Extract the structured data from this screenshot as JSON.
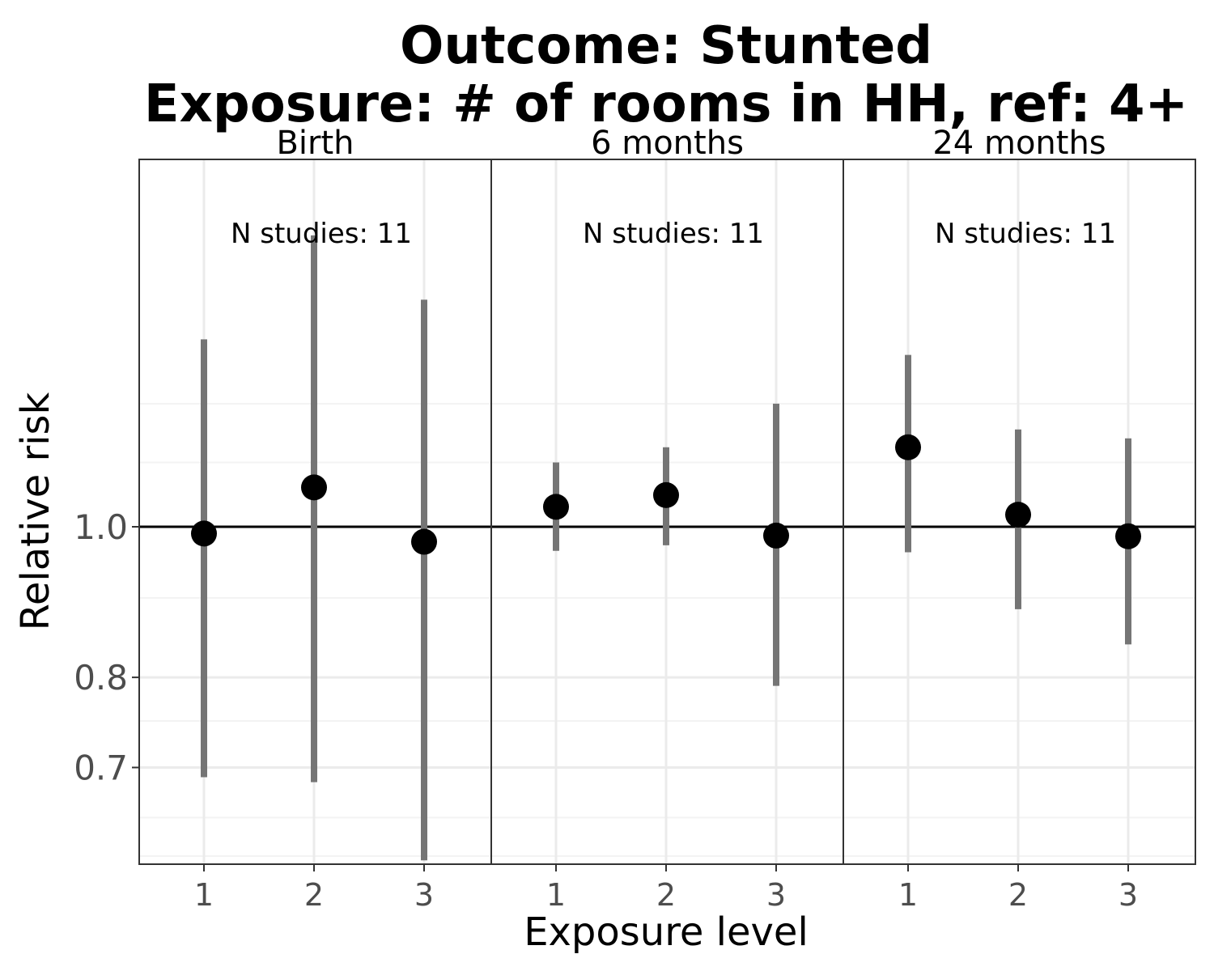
{
  "chart_data": {
    "type": "scatter",
    "title_line1": "Outcome: Stunted",
    "title_line2": "Exposure: # of rooms in HH, ref: 4+",
    "xlabel": "Exposure level",
    "ylabel": "Relative risk",
    "y_scale": "log",
    "ylim": [
      0.6,
      1.5
    ],
    "y_ticks": [
      0.7,
      0.8,
      1.0
    ],
    "y_tick_labels": [
      "0.7",
      "0.8",
      "1.0"
    ],
    "reference_line": 1.0,
    "categories": [
      "1",
      "2",
      "3"
    ],
    "panels": [
      {
        "label": "Birth",
        "annotation": "N studies: 11",
        "points": [
          {
            "x": "1",
            "estimate": 0.99,
            "lower": 0.69,
            "upper": 1.32
          },
          {
            "x": "2",
            "estimate": 1.06,
            "lower": 0.685,
            "upper": 1.54
          },
          {
            "x": "3",
            "estimate": 0.978,
            "lower": 0.61,
            "upper": 1.4
          }
        ]
      },
      {
        "label": "6 months",
        "annotation": "N studies: 11",
        "points": [
          {
            "x": "1",
            "estimate": 1.03,
            "lower": 0.965,
            "upper": 1.1
          },
          {
            "x": "2",
            "estimate": 1.048,
            "lower": 0.973,
            "upper": 1.125
          },
          {
            "x": "3",
            "estimate": 0.987,
            "lower": 0.79,
            "upper": 1.2
          }
        ]
      },
      {
        "label": "24 months",
        "annotation": "N studies: 11",
        "points": [
          {
            "x": "1",
            "estimate": 1.125,
            "lower": 0.963,
            "upper": 1.29
          },
          {
            "x": "2",
            "estimate": 1.018,
            "lower": 0.885,
            "upper": 1.155
          },
          {
            "x": "3",
            "estimate": 0.986,
            "lower": 0.84,
            "upper": 1.14
          }
        ]
      }
    ],
    "grid": true,
    "colors": {
      "point": "#000000",
      "errorbar": "#757575",
      "refline": "#000000",
      "grid_major": "#ebebeb",
      "grid_minor": "#f3f3f3",
      "panel_border": "#333333"
    }
  }
}
